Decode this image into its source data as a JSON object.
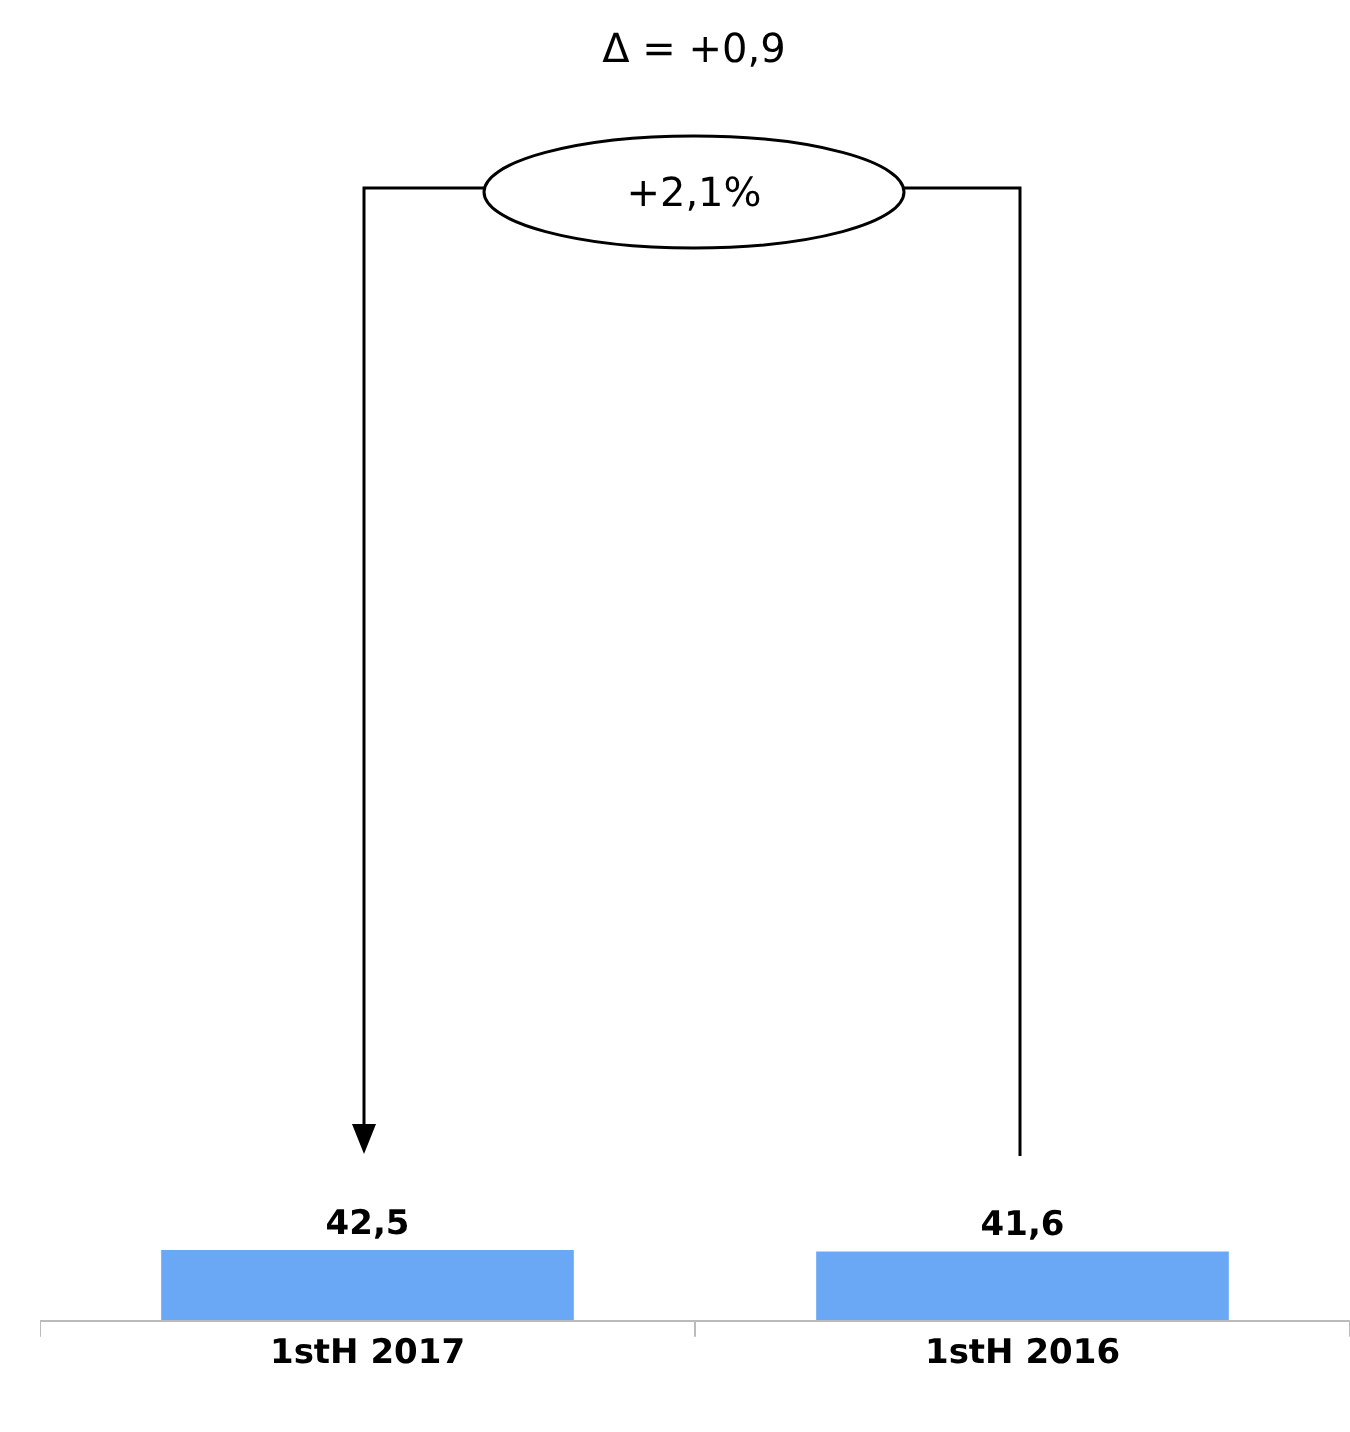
{
  "chart_data": {
    "type": "bar",
    "categories": [
      "1stH 2017",
      "1stH 2016"
    ],
    "values": [
      42.5,
      41.6
    ],
    "value_labels": [
      "42,5",
      "41,6"
    ],
    "color": "#6aa8f5",
    "annotations": [
      "Δ = +0,9",
      "+2,1%"
    ]
  }
}
